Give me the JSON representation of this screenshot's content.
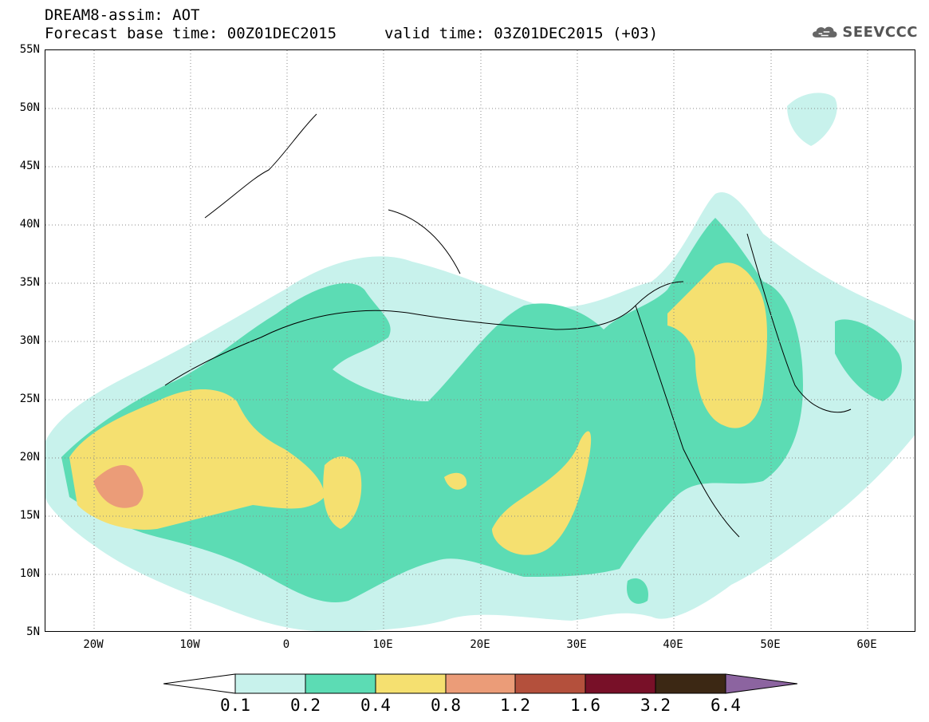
{
  "title": {
    "line1": "DREAM8-assim: AOT",
    "base_time": "Forecast base time: 00Z01DEC2015",
    "valid_time": "valid time: 03Z01DEC2015 (+03)"
  },
  "logo": {
    "text": "SEEVCCC",
    "icon": "cloud-icon"
  },
  "map": {
    "lon_range": [
      -25,
      65
    ],
    "lat_range": [
      5,
      55
    ],
    "lat_ticks": [
      "55N",
      "50N",
      "45N",
      "40N",
      "35N",
      "30N",
      "25N",
      "20N",
      "15N",
      "10N",
      "5N"
    ],
    "lon_ticks": [
      "20W",
      "10W",
      "0",
      "10E",
      "20E",
      "30E",
      "40E",
      "50E",
      "60E"
    ],
    "grid": "dotted"
  },
  "colorbar": {
    "labels": [
      "0.1",
      "0.2",
      "0.4",
      "0.8",
      "1.2",
      "1.6",
      "3.2",
      "6.4"
    ],
    "colors": [
      "#ffffff",
      "#c8f2ec",
      "#5cdcb4",
      "#f5e070",
      "#eb9c78",
      "#b4503c",
      "#781028",
      "#3c2814",
      "#8c64a0"
    ]
  }
}
